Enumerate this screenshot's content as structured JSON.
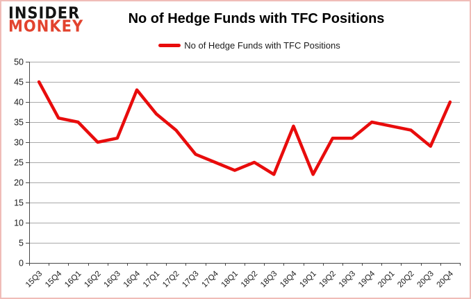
{
  "logo": {
    "line1": "INSIDER",
    "line2": "MONKEY"
  },
  "header": {
    "title": "No of Hedge Funds with TFC Positions"
  },
  "legend": {
    "label": "No of Hedge Funds with TFC Positions"
  },
  "colors": {
    "line": "#e80c0c",
    "gridline": "#a8a8a8",
    "axis": "#474747",
    "tick_label": "#1a1a1a",
    "logo_black": "#141414",
    "logo_red": "#e2432e",
    "frame": "#f0bcb8"
  },
  "chart_data": {
    "type": "line",
    "title": "No of Hedge Funds with TFC Positions",
    "categories": [
      "15Q3",
      "15Q4",
      "16Q1",
      "16Q2",
      "16Q3",
      "16Q4",
      "17Q1",
      "17Q2",
      "17Q3",
      "17Q4",
      "18Q1",
      "18Q2",
      "18Q3",
      "18Q4",
      "19Q1",
      "19Q2",
      "19Q3",
      "19Q4",
      "20Q1",
      "20Q2",
      "20Q3",
      "20Q4"
    ],
    "series": [
      {
        "name": "No of Hedge Funds with TFC Positions",
        "color": "#e80c0c",
        "values": [
          45,
          36,
          35,
          30,
          31,
          43,
          37,
          33,
          27,
          25,
          23,
          25,
          22,
          34,
          22,
          31,
          31,
          35,
          34,
          33,
          29,
          40
        ]
      }
    ],
    "ylim": [
      0,
      50
    ],
    "yticks": [
      0,
      5,
      10,
      15,
      20,
      25,
      30,
      35,
      40,
      45,
      50
    ],
    "grid": "horizontal",
    "legend_position": "top",
    "x_label_rotation": -45
  }
}
